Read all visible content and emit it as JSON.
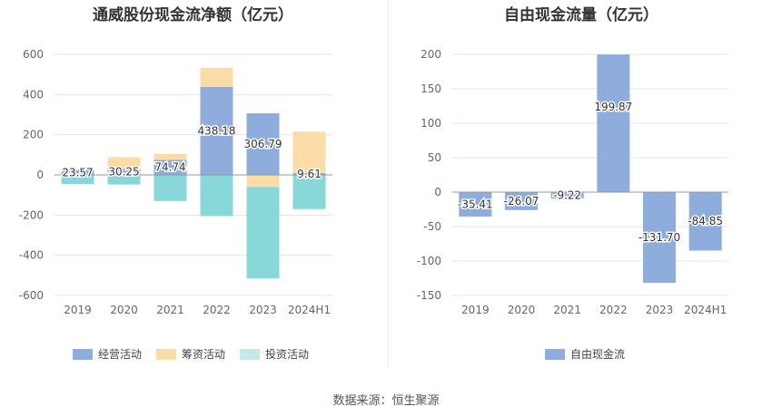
{
  "chart_data": [
    {
      "type": "bar",
      "stacked": true,
      "title": "通威股份现金流净额（亿元）",
      "categories": [
        "2019",
        "2020",
        "2021",
        "2022",
        "2023",
        "2024H1"
      ],
      "ylim": [
        -600,
        600
      ],
      "yticks": [
        600,
        400,
        200,
        0,
        -200,
        -400,
        -600
      ],
      "series": [
        {
          "name": "经营活动",
          "color": "#8eacdc",
          "values": [
            23.57,
            30.25,
            74.74,
            438.18,
            306.79,
            9.61
          ]
        },
        {
          "name": "筹资活动",
          "color": "#fcdca6",
          "values": [
            5,
            58,
            30,
            95,
            -60,
            205
          ]
        },
        {
          "name": "投资活动",
          "color": "#88d8da",
          "values": [
            -45,
            -48,
            -130,
            -205,
            -455,
            -170
          ]
        }
      ],
      "data_labels": [
        "23.57",
        "30.25",
        "74.74",
        "438.18",
        "306.79",
        "9.61"
      ]
    },
    {
      "type": "bar",
      "title": "自由现金流量（亿元）",
      "categories": [
        "2019",
        "2020",
        "2021",
        "2022",
        "2023",
        "2024H1"
      ],
      "ylim": [
        -150,
        200
      ],
      "yticks": [
        200,
        150,
        100,
        50,
        0,
        -50,
        -100,
        -150
      ],
      "series": [
        {
          "name": "自由现金流",
          "color": "#8eacdc",
          "values": [
            -35.41,
            -26.07,
            -9.22,
            199.87,
            -131.7,
            -84.85
          ]
        }
      ],
      "data_labels": [
        "-35.41",
        "-26.07",
        "-9.22",
        "199.87",
        "-131.70",
        "-84.85"
      ]
    }
  ],
  "source": "数据来源：恒生聚源"
}
